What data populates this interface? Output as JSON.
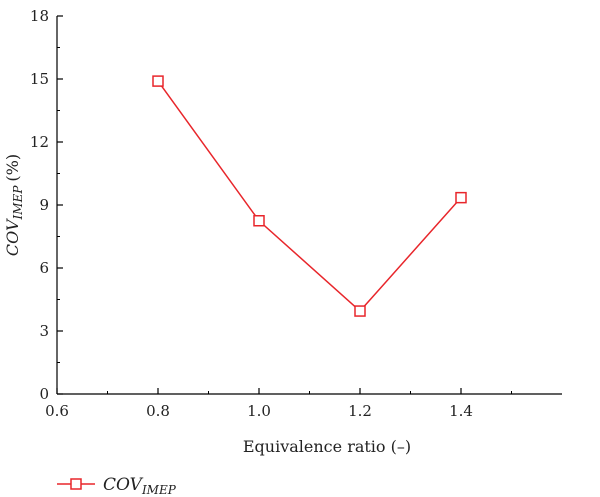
{
  "chart_data": {
    "type": "line",
    "x": [
      0.8,
      1.0,
      1.2,
      1.4
    ],
    "series": [
      {
        "name": "COV_IMEP",
        "values": [
          14.9,
          8.25,
          3.95,
          9.35
        ]
      }
    ],
    "xlim": [
      0.6,
      1.6
    ],
    "ylim": [
      0,
      18
    ],
    "xticks": [
      0.6,
      0.8,
      1.0,
      1.2,
      1.4
    ],
    "xtick_labels": [
      "0.6",
      "0.8",
      "1.0",
      "1.2",
      "1.4"
    ],
    "yticks": [
      0,
      3,
      6,
      9,
      12,
      15,
      18
    ],
    "ytick_labels": [
      "0",
      "3",
      "6",
      "9",
      "12",
      "15",
      "18"
    ],
    "xlabel": "Equivalence ratio (–)",
    "ylabel": {
      "main": "COV",
      "sub": "IMEP",
      "unit": "(%)"
    },
    "legend": {
      "position": "bottom-left",
      "main": "COV",
      "sub": "IMEP"
    },
    "grid": false,
    "series_color": "#e8262b",
    "marker": "open-square"
  }
}
